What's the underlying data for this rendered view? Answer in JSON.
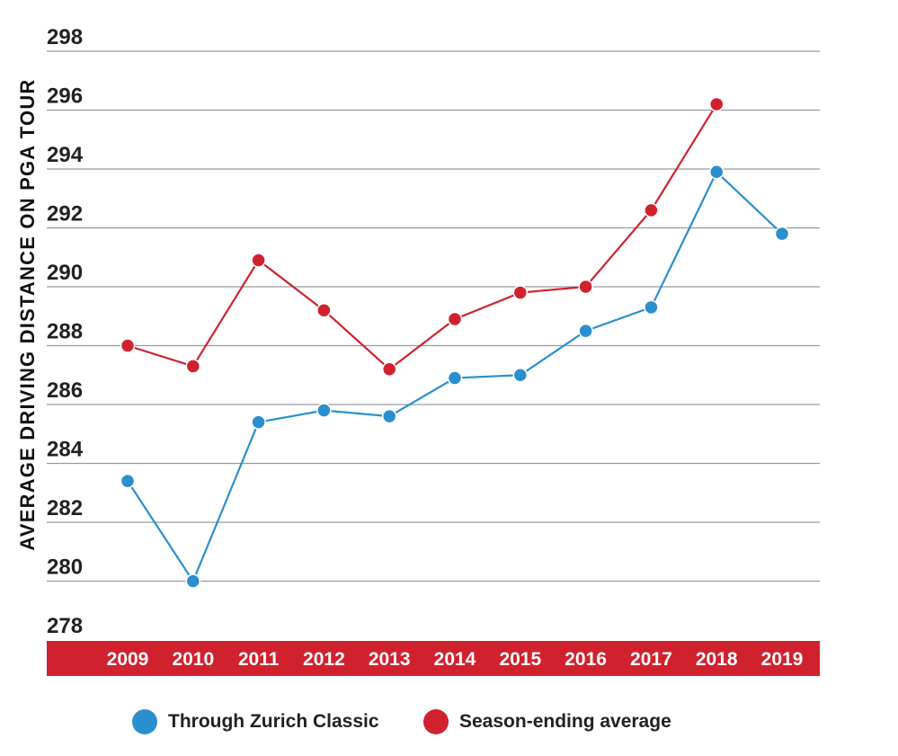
{
  "chart_data": {
    "type": "line",
    "title": "",
    "xlabel": "",
    "ylabel": "AVERAGE DRIVING DISTANCE ON PGA TOUR",
    "ylim": [
      278,
      298
    ],
    "yticks": [
      298,
      296,
      294,
      292,
      290,
      288,
      286,
      284,
      282,
      280,
      278
    ],
    "categories": [
      "2009",
      "2010",
      "2011",
      "2012",
      "2013",
      "2014",
      "2015",
      "2016",
      "2017",
      "2018",
      "2019"
    ],
    "grid": true,
    "legend_position": "bottom",
    "series": [
      {
        "name": "Through Zurich Classic",
        "color": "#2a8fcd",
        "values": [
          283.4,
          280.0,
          285.4,
          285.8,
          285.6,
          286.9,
          287.0,
          288.5,
          289.3,
          293.9,
          291.8
        ]
      },
      {
        "name": "Season-ending average",
        "color": "#d0222e",
        "values": [
          288.0,
          287.3,
          290.9,
          289.2,
          287.2,
          288.9,
          289.8,
          290.0,
          292.6,
          296.2,
          null
        ]
      }
    ],
    "axis_band_color": "#d0222e"
  }
}
